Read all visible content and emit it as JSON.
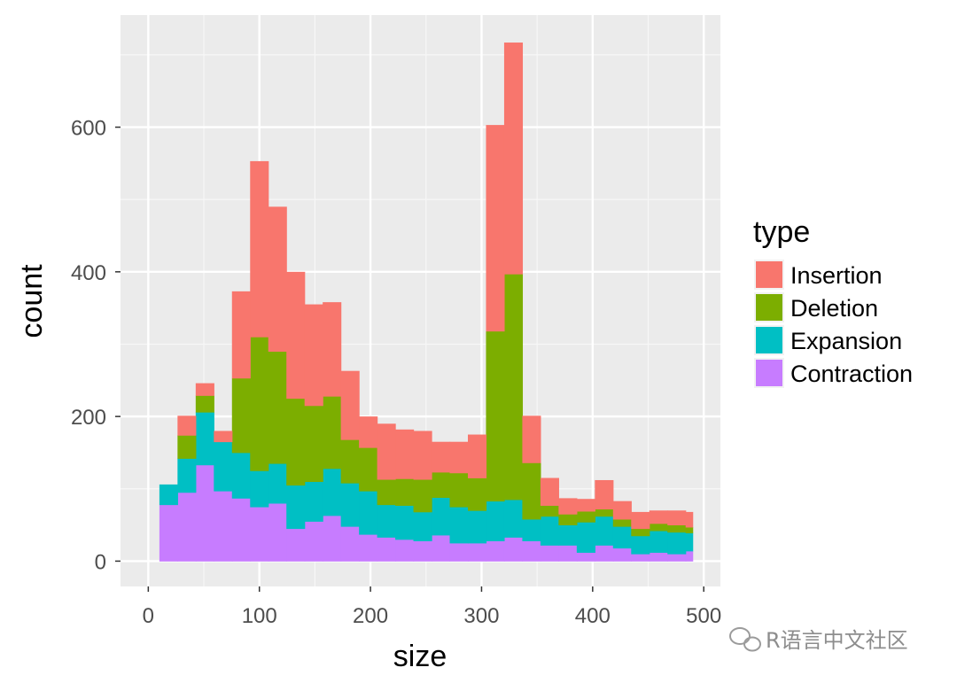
{
  "chart_data": {
    "type": "bar",
    "stacked": true,
    "xlabel": "size",
    "ylabel": "count",
    "x_ticks": [
      "0",
      "100",
      "200",
      "300",
      "400",
      "500"
    ],
    "y_ticks": [
      "0",
      "200",
      "400",
      "600"
    ],
    "xlim": [
      -25,
      515
    ],
    "ylim": [
      -35,
      755
    ],
    "legend": {
      "title": "type",
      "position": "right"
    },
    "bin_edges": [
      10,
      26.33,
      42.67,
      59,
      75.33,
      91.67,
      108,
      124.33,
      140.67,
      157,
      173.33,
      189.67,
      206,
      222.33,
      238.67,
      255,
      271.33,
      287.67,
      304,
      320.33,
      336.67,
      353,
      369.33,
      385.67,
      402,
      418.33,
      434.67,
      451,
      467.33,
      483.67,
      490
    ],
    "series": [
      {
        "name": "Contraction",
        "color": "#C77CFF",
        "values": [
          78,
          95,
          133,
          97,
          87,
          75,
          80,
          45,
          55,
          63,
          48,
          37,
          33,
          30,
          28,
          36,
          25,
          25,
          28,
          33,
          28,
          22,
          22,
          12,
          22,
          18,
          10,
          12,
          10,
          14
        ]
      },
      {
        "name": "Expansion",
        "color": "#00BFC4",
        "values": [
          28,
          47,
          73,
          68,
          63,
          50,
          55,
          60,
          55,
          65,
          60,
          60,
          45,
          47,
          40,
          52,
          50,
          45,
          55,
          52,
          30,
          40,
          28,
          42,
          40,
          30,
          25,
          30,
          30,
          25
        ]
      },
      {
        "name": "Deletion",
        "color": "#7CAE00",
        "values": [
          0,
          32,
          23,
          0,
          103,
          185,
          155,
          120,
          105,
          100,
          60,
          60,
          35,
          37,
          45,
          35,
          47,
          45,
          235,
          312,
          78,
          15,
          15,
          15,
          10,
          10,
          10,
          10,
          10,
          8
        ]
      },
      {
        "name": "Insertion",
        "color": "#F8766D",
        "values": [
          0,
          27,
          17,
          15,
          120,
          243,
          200,
          175,
          140,
          130,
          95,
          43,
          77,
          68,
          67,
          42,
          43,
          60,
          285,
          320,
          65,
          38,
          22,
          17,
          40,
          25,
          23,
          18,
          20,
          21
        ]
      }
    ],
    "legend_order": [
      "Insertion",
      "Deletion",
      "Expansion",
      "Contraction"
    ],
    "colors": {
      "panel": "#EBEBEB",
      "grid": "#FFFFFF",
      "tick": "#4D4D4D"
    }
  },
  "watermark": {
    "text": "R语言中文社区",
    "icon": "wechat-icon"
  }
}
